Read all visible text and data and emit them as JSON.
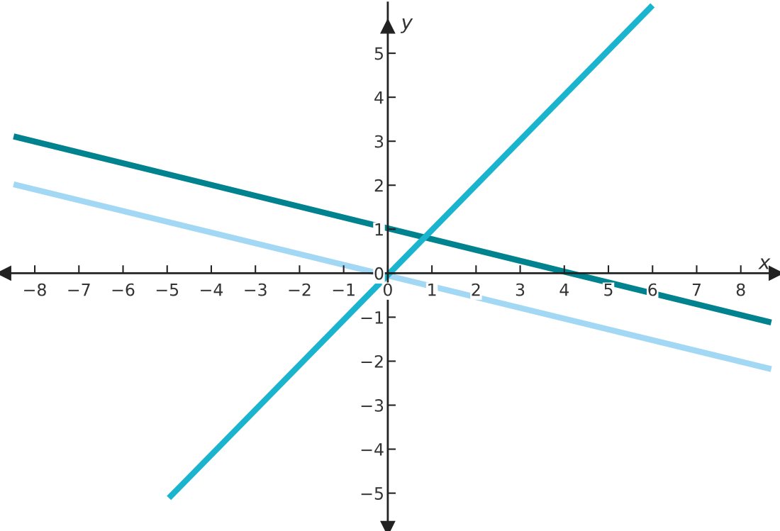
{
  "chart_data": {
    "type": "line",
    "xlabel": "x",
    "ylabel": "y",
    "xlim": [
      -8.7,
      8.8
    ],
    "ylim": [
      -5.8,
      6.15
    ],
    "xticks": [
      -8,
      -7,
      -6,
      -5,
      -4,
      -3,
      -2,
      -1,
      0,
      1,
      2,
      3,
      4,
      5,
      6,
      7,
      8
    ],
    "yticks": [
      -5,
      -4,
      -3,
      -2,
      -1,
      0,
      1,
      2,
      3,
      4,
      5
    ],
    "grid": false,
    "marker": "none",
    "line_style": "solid",
    "series": [
      {
        "color": "#00838f",
        "x": [
          -8.48,
          8.69
        ],
        "values": [
          3.11,
          -1.12
        ]
      },
      {
        "color": "#a3d8f4",
        "x": [
          -8.48,
          8.69
        ],
        "values": [
          2.02,
          -2.18
        ]
      },
      {
        "color": "#1ab4cf",
        "x": [
          -4.96,
          6.0
        ],
        "values": [
          -5.11,
          6.09
        ]
      }
    ]
  }
}
